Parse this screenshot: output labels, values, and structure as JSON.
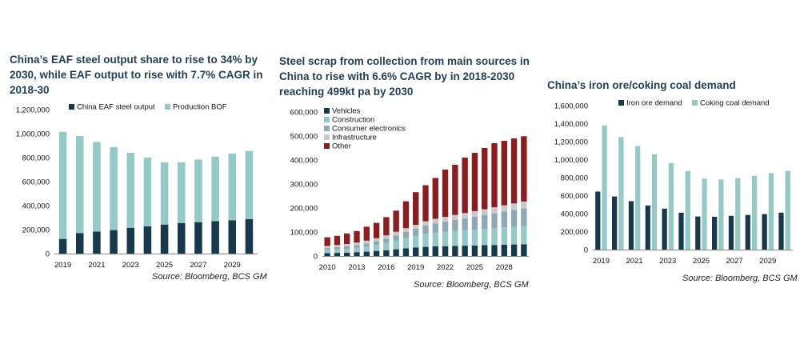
{
  "charts": [
    {
      "title": "China’s EAF steel output share to rise to 34% by 2030, while EAF output to rise with 7.7% CAGR in 2018-30",
      "source": "Source: Bloomberg, BCS GM"
    },
    {
      "title": "Steel scrap from collection from main sources in China to rise with 6.6% CAGR by in 2018-2030 reaching 499kt pa by 2030",
      "source": "Source: Bloomberg, BCS GM"
    },
    {
      "title": "China’s iron ore/coking coal demand",
      "source": "Source: Bloomberg, BCS GM"
    }
  ],
  "chart_data": [
    {
      "type": "bar",
      "stacked": true,
      "categories": [
        "2019",
        "2020",
        "2021",
        "2022",
        "2023",
        "2024",
        "2025",
        "2026",
        "2027",
        "2028",
        "2029",
        "2030"
      ],
      "tick_labels": [
        "2019",
        "2021",
        "2023",
        "2025",
        "2027",
        "2029"
      ],
      "series": [
        {
          "name": "China EAF steel output",
          "color": "#17394d",
          "values": [
            122000,
            170000,
            183000,
            196000,
            215000,
            228000,
            242000,
            255000,
            262000,
            270000,
            278000,
            288000
          ]
        },
        {
          "name": "Production BOF",
          "color": "#93cac6",
          "values": [
            893000,
            810000,
            747000,
            692000,
            625000,
            572000,
            518000,
            505000,
            522000,
            538000,
            555000,
            568000
          ]
        }
      ],
      "ylim": [
        0,
        1200000
      ],
      "yticks": [
        0,
        200000,
        400000,
        600000,
        800000,
        1000000,
        1200000
      ],
      "ytick_labels": [
        "0",
        "200,000",
        "400,000",
        "600,000",
        "800,000",
        "1,000,000",
        "1,200,000"
      ],
      "legend_position": "top-left",
      "grid": false
    },
    {
      "type": "bar",
      "stacked": true,
      "categories": [
        "2010",
        "2011",
        "2012",
        "2013",
        "2014",
        "2015",
        "2016",
        "2017",
        "2018",
        "2019",
        "2020",
        "2021",
        "2022",
        "2023",
        "2024",
        "2025",
        "2026",
        "2027",
        "2028",
        "2029",
        "2030"
      ],
      "tick_labels": [
        "2010",
        "2013",
        "2016",
        "2019",
        "2022",
        "2025",
        "2028"
      ],
      "series": [
        {
          "name": "Vehicles",
          "color": "#17394d",
          "values": [
            12000,
            13000,
            14000,
            16000,
            18000,
            21000,
            24000,
            28000,
            32000,
            35000,
            38000,
            40000,
            41000,
            42000,
            43000,
            44000,
            45000,
            46000,
            47000,
            48000,
            49000
          ]
        },
        {
          "name": "Construction",
          "color": "#93cac6",
          "values": [
            14000,
            15000,
            16000,
            18000,
            21000,
            25000,
            30000,
            36000,
            42000,
            48000,
            55000,
            58000,
            60000,
            62000,
            64000,
            66000,
            68000,
            70000,
            72000,
            74000,
            76000
          ]
        },
        {
          "name": "Consumer electronics",
          "color": "#8fa8b5",
          "values": [
            8000,
            9000,
            10000,
            11000,
            13000,
            15000,
            18000,
            22000,
            26000,
            30000,
            34000,
            38000,
            42000,
            46000,
            50000,
            54000,
            58000,
            62000,
            66000,
            70000,
            74000
          ]
        },
        {
          "name": "Infrastructure",
          "color": "#c9c9c9",
          "values": [
            8000,
            9000,
            10000,
            11000,
            12000,
            13000,
            14000,
            15000,
            16000,
            17000,
            18000,
            19000,
            20000,
            21000,
            22000,
            23000,
            24000,
            25000,
            26000,
            27000,
            28000
          ]
        },
        {
          "name": "Other",
          "color": "#8c1d1f",
          "values": [
            36000,
            38000,
            44000,
            48000,
            58000,
            64000,
            76000,
            88000,
            112000,
            136000,
            150000,
            170000,
            197000,
            209000,
            231000,
            243000,
            255000,
            267000,
            269000,
            271000,
            272000
          ]
        }
      ],
      "ylim": [
        0,
        600000
      ],
      "yticks": [
        0,
        100000,
        200000,
        300000,
        400000,
        500000,
        600000
      ],
      "ytick_labels": [
        "0",
        "100,000",
        "200,000",
        "300,000",
        "400,000",
        "500,000",
        "600,000"
      ],
      "legend_position": "top-left",
      "grid": false
    },
    {
      "type": "bar",
      "stacked": false,
      "categories": [
        "2019",
        "2020",
        "2021",
        "2022",
        "2023",
        "2024",
        "2025",
        "2026",
        "2027",
        "2028",
        "2029",
        "2030"
      ],
      "tick_labels": [
        "2019",
        "2021",
        "2023",
        "2025",
        "2027",
        "2029"
      ],
      "series": [
        {
          "name": "Iron ore demand",
          "color": "#17394d",
          "values": [
            645000,
            590000,
            538000,
            490000,
            455000,
            410000,
            368000,
            365000,
            375000,
            385000,
            395000,
            410000
          ]
        },
        {
          "name": "Coking coal demand",
          "color": "#93cac6",
          "values": [
            1380000,
            1250000,
            1150000,
            1060000,
            960000,
            875000,
            790000,
            780000,
            795000,
            820000,
            850000,
            875000
          ]
        }
      ],
      "ylim": [
        0,
        1600000
      ],
      "yticks": [
        0,
        200000,
        400000,
        600000,
        800000,
        1000000,
        1200000,
        1400000,
        1600000
      ],
      "ytick_labels": [
        "0",
        "200,000",
        "400,000",
        "600,000",
        "800,000",
        "1,000,000",
        "1,200,000",
        "1,400,000",
        "1,600,000"
      ],
      "legend_position": "top",
      "grid": false
    }
  ]
}
